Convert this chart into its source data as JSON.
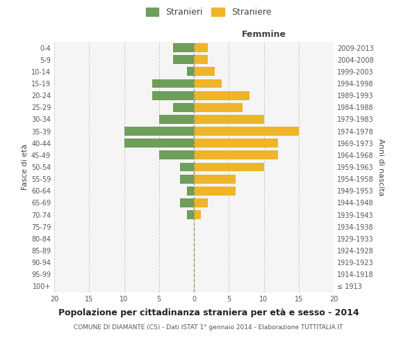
{
  "age_groups": [
    "100+",
    "95-99",
    "90-94",
    "85-89",
    "80-84",
    "75-79",
    "70-74",
    "65-69",
    "60-64",
    "55-59",
    "50-54",
    "45-49",
    "40-44",
    "35-39",
    "30-34",
    "25-29",
    "20-24",
    "15-19",
    "10-14",
    "5-9",
    "0-4"
  ],
  "birth_years": [
    "≤ 1913",
    "1914-1918",
    "1919-1923",
    "1924-1928",
    "1929-1933",
    "1934-1938",
    "1939-1943",
    "1944-1948",
    "1949-1953",
    "1954-1958",
    "1959-1963",
    "1964-1968",
    "1969-1973",
    "1974-1978",
    "1979-1983",
    "1984-1988",
    "1989-1993",
    "1994-1998",
    "1999-2003",
    "2004-2008",
    "2009-2013"
  ],
  "males": [
    0,
    0,
    0,
    0,
    0,
    0,
    1,
    2,
    1,
    2,
    2,
    5,
    10,
    10,
    5,
    3,
    6,
    6,
    1,
    3,
    3
  ],
  "females": [
    0,
    0,
    0,
    0,
    0,
    0,
    1,
    2,
    6,
    6,
    10,
    12,
    12,
    15,
    10,
    7,
    8,
    4,
    3,
    2,
    2
  ],
  "male_color": "#6d9e5a",
  "female_color": "#f0b429",
  "title": "Popolazione per cittadinanza straniera per età e sesso - 2014",
  "subtitle": "COMUNE DI DIAMANTE (CS) - Dati ISTAT 1° gennaio 2014 - Elaborazione TUTTITALIA.IT",
  "xlabel_right": "Femmine",
  "ylabel_left": "Fasce di età",
  "ylabel_right": "Anni di nascita",
  "xlim": 20,
  "legend_stranieri": "Stranieri",
  "legend_straniere": "Straniere",
  "background_color": "#ffffff",
  "bar_height": 0.75,
  "ax_facecolor": "#f5f5f5"
}
